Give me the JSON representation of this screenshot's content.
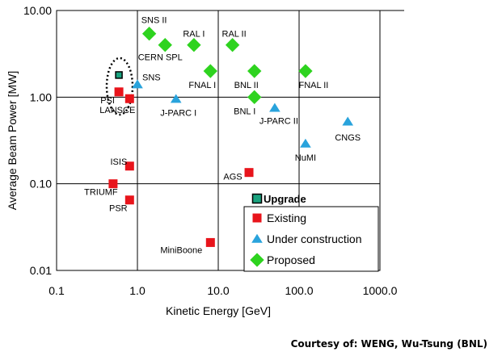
{
  "chart_data": {
    "type": "scatter",
    "title": "",
    "xlabel": "Kinetic Energy [GeV]",
    "ylabel": "Average Beam Power [MW]",
    "xscale": "log",
    "yscale": "log",
    "xlim": [
      0.1,
      1000
    ],
    "ylim": [
      0.01,
      10
    ],
    "xticks": [
      "0.1",
      "1.0",
      "10.0",
      "100.0",
      "1000.0"
    ],
    "yticks": [
      "0.01",
      "0.10",
      "1.00",
      "10.00"
    ],
    "grid": true,
    "legend_position": "bottom-right",
    "legend_title": "Upgrade",
    "series": [
      {
        "name": "Existing",
        "marker": "square",
        "color": "#e8141b",
        "points": [
          {
            "label": "ISIS",
            "x": 0.8,
            "y": 0.16
          },
          {
            "label": "TRIUMF",
            "x": 0.5,
            "y": 0.1
          },
          {
            "label": "PSR",
            "x": 0.8,
            "y": 0.065
          },
          {
            "label": "LANSCE",
            "x": 0.8,
            "y": 0.96
          },
          {
            "label": "PSI",
            "x": 0.59,
            "y": 1.15
          },
          {
            "label": "AGS",
            "x": 24,
            "y": 0.135
          },
          {
            "label": "MiniBoone",
            "x": 8,
            "y": 0.021
          }
        ]
      },
      {
        "name": "Under construction",
        "marker": "triangle",
        "color": "#29a3dc",
        "points": [
          {
            "label": "SNS",
            "x": 1.0,
            "y": 1.4
          },
          {
            "label": "J-PARC I",
            "x": 3,
            "y": 0.95
          },
          {
            "label": "J-PARC II",
            "x": 50,
            "y": 0.75
          },
          {
            "label": "CNGS",
            "x": 400,
            "y": 0.52
          },
          {
            "label": "NuMI",
            "x": 120,
            "y": 0.29
          }
        ]
      },
      {
        "name": "Proposed",
        "marker": "diamond",
        "color": "#2ed31f",
        "points": [
          {
            "label": "SNS II",
            "x": 1.4,
            "y": 5.4
          },
          {
            "label": "CERN SPL",
            "x": 2.2,
            "y": 4.0
          },
          {
            "label": "RAL I",
            "x": 5,
            "y": 4.0
          },
          {
            "label": "RAL II",
            "x": 15,
            "y": 4.0
          },
          {
            "label": "FNAL I",
            "x": 8,
            "y": 2.0
          },
          {
            "label": "BNL II",
            "x": 28,
            "y": 2.0
          },
          {
            "label": "FNAL II",
            "x": 120,
            "y": 2.0
          },
          {
            "label": "BNL I",
            "x": 28,
            "y": 1.0
          }
        ]
      },
      {
        "name": "Upgrade",
        "marker": "square-outlined",
        "color": "#1aa37f",
        "points": [
          {
            "label": "PSI",
            "x": 0.59,
            "y": 1.8
          }
        ]
      }
    ]
  },
  "credit": "Courtesy of: WENG, Wu-Tsung (BNL)"
}
